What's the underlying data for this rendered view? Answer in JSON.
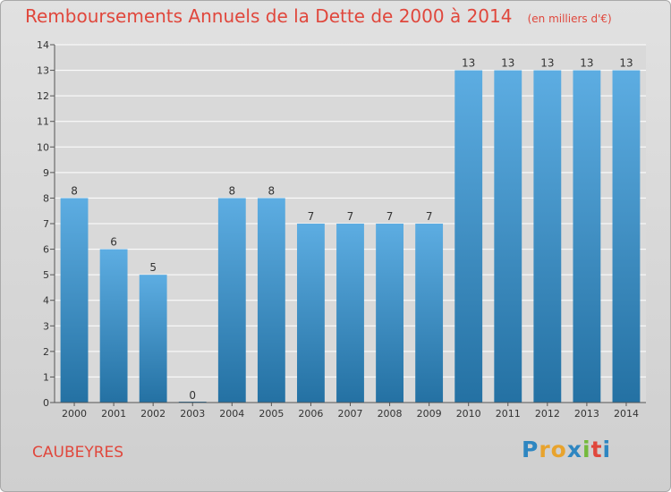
{
  "title": "Remboursements Annuels de la Dette de 2000 à 2014",
  "unit_note": "(en milliers d'€)",
  "commune": "CAUBEYRES",
  "logo": {
    "letters": [
      "P",
      "r",
      "o",
      "x",
      "i",
      "t",
      "i"
    ],
    "colors": [
      "#2e86c1",
      "#e8a32d",
      "#e8a32d",
      "#2e86c1",
      "#74b93c",
      "#e0473c",
      "#2e86c1"
    ]
  },
  "colors": {
    "title": "#e0473c",
    "bar_light": "#5dade2",
    "bar_dark": "#2471a3",
    "background": "#d9d9d9",
    "grid": "#ffffff"
  },
  "chart_data": {
    "type": "bar",
    "title": "Remboursements Annuels de la Dette de 2000 à 2014",
    "xlabel": "",
    "ylabel": "",
    "ylim": [
      0,
      14
    ],
    "yticks": [
      0,
      1,
      2,
      3,
      4,
      5,
      6,
      7,
      8,
      9,
      10,
      11,
      12,
      13,
      14
    ],
    "grid": true,
    "categories": [
      "2000",
      "2001",
      "2002",
      "2003",
      "2004",
      "2005",
      "2006",
      "2007",
      "2008",
      "2009",
      "2010",
      "2011",
      "2012",
      "2013",
      "2014"
    ],
    "values": [
      8,
      6,
      5,
      0,
      8,
      8,
      7,
      7,
      7,
      7,
      13,
      13,
      13,
      13,
      13
    ]
  }
}
